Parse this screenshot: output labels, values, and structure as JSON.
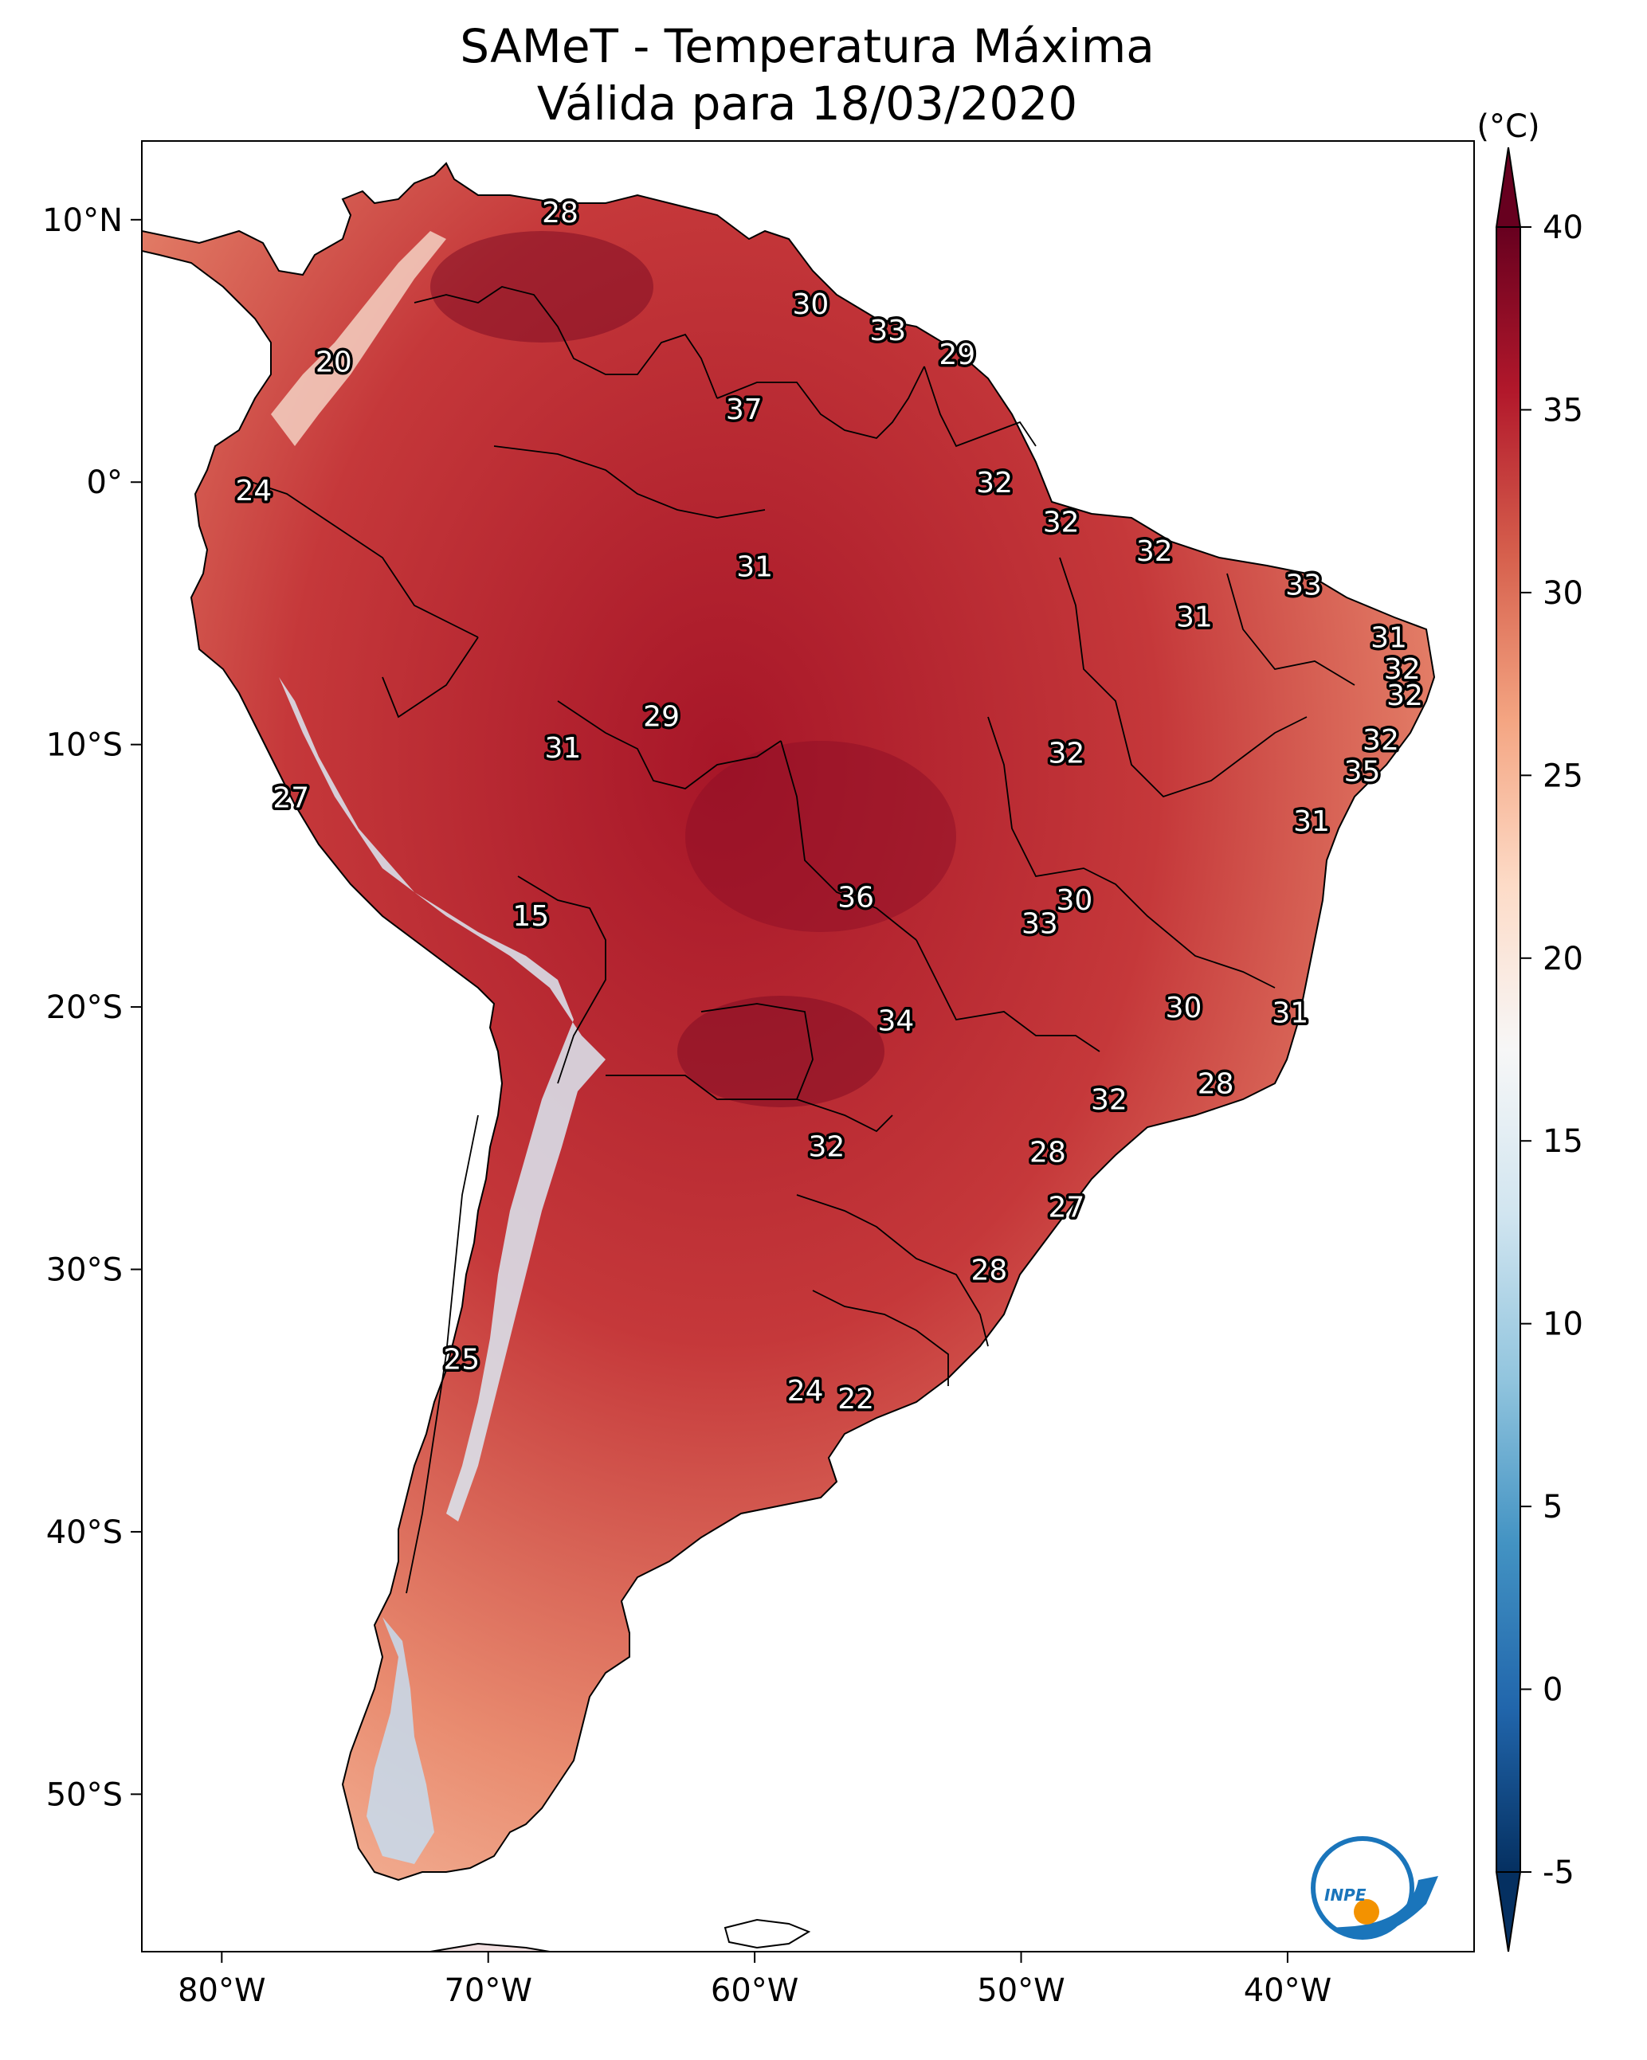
{
  "title": {
    "line1": "SAMeT - Temperatura Máxima",
    "line2": "Válida para 18/03/2020"
  },
  "map": {
    "lon_range": [
      -83,
      -33
    ],
    "lat_range": [
      -56,
      13
    ],
    "lon_ticks": [
      {
        "value": -80,
        "label": "80°W"
      },
      {
        "value": -70,
        "label": "70°W"
      },
      {
        "value": -60,
        "label": "60°W"
      },
      {
        "value": -50,
        "label": "50°W"
      },
      {
        "value": -40,
        "label": "40°W"
      }
    ],
    "lat_ticks": [
      {
        "value": 10,
        "label": "10°N"
      },
      {
        "value": 0,
        "label": "0°"
      },
      {
        "value": -10,
        "label": "10°S"
      },
      {
        "value": -20,
        "label": "20°S"
      },
      {
        "value": -30,
        "label": "30°S"
      },
      {
        "value": -40,
        "label": "40°S"
      },
      {
        "value": -50,
        "label": "50°S"
      }
    ]
  },
  "colorbar": {
    "unit_label": "(°C)",
    "vmin": -5,
    "vmax": 40,
    "ticks": [
      {
        "value": 40,
        "label": "40"
      },
      {
        "value": 35,
        "label": "35"
      },
      {
        "value": 30,
        "label": "30"
      },
      {
        "value": 25,
        "label": "25"
      },
      {
        "value": 20,
        "label": "20"
      },
      {
        "value": 15,
        "label": "15"
      },
      {
        "value": 10,
        "label": "10"
      },
      {
        "value": 5,
        "label": "5"
      },
      {
        "value": 0,
        "label": "0"
      },
      {
        "value": -5,
        "label": "-5"
      }
    ],
    "colors": [
      "#053061",
      "#2166ac",
      "#4393c3",
      "#92c5de",
      "#d1e5f0",
      "#f7f7f7",
      "#fddbc7",
      "#f4a582",
      "#d6604d",
      "#b2182b",
      "#67001f"
    ]
  },
  "station_labels": [
    {
      "text": "28",
      "lon": -67.3,
      "lat": 10.3
    },
    {
      "text": "30",
      "lon": -57.9,
      "lat": 6.8
    },
    {
      "text": "33",
      "lon": -55.0,
      "lat": 5.8
    },
    {
      "text": "29",
      "lon": -52.4,
      "lat": 4.9
    },
    {
      "text": "20",
      "lon": -75.8,
      "lat": 4.6
    },
    {
      "text": "37",
      "lon": -60.4,
      "lat": 2.8
    },
    {
      "text": "32",
      "lon": -51.0,
      "lat": 0.0
    },
    {
      "text": "24",
      "lon": -78.8,
      "lat": -0.3
    },
    {
      "text": "32",
      "lon": -48.5,
      "lat": -1.5
    },
    {
      "text": "32",
      "lon": -45.0,
      "lat": -2.6
    },
    {
      "text": "31",
      "lon": -60.0,
      "lat": -3.2
    },
    {
      "text": "33",
      "lon": -39.4,
      "lat": -3.9
    },
    {
      "text": "31",
      "lon": -43.5,
      "lat": -5.1
    },
    {
      "text": "31",
      "lon": -36.2,
      "lat": -5.9
    },
    {
      "text": "32",
      "lon": -35.7,
      "lat": -7.1
    },
    {
      "text": "32",
      "lon": -35.6,
      "lat": -8.1
    },
    {
      "text": "29",
      "lon": -63.5,
      "lat": -8.9
    },
    {
      "text": "32",
      "lon": -36.5,
      "lat": -9.8
    },
    {
      "text": "31",
      "lon": -67.2,
      "lat": -10.1
    },
    {
      "text": "32",
      "lon": -48.3,
      "lat": -10.3
    },
    {
      "text": "35",
      "lon": -37.2,
      "lat": -11.0
    },
    {
      "text": "27",
      "lon": -77.4,
      "lat": -12.0
    },
    {
      "text": "31",
      "lon": -39.1,
      "lat": -12.9
    },
    {
      "text": "36",
      "lon": -56.2,
      "lat": -15.8
    },
    {
      "text": "30",
      "lon": -48.0,
      "lat": -15.9
    },
    {
      "text": "15",
      "lon": -68.4,
      "lat": -16.5
    },
    {
      "text": "33",
      "lon": -49.3,
      "lat": -16.8
    },
    {
      "text": "30",
      "lon": -43.9,
      "lat": -20.0
    },
    {
      "text": "31",
      "lon": -39.9,
      "lat": -20.2
    },
    {
      "text": "34",
      "lon": -54.7,
      "lat": -20.5
    },
    {
      "text": "28",
      "lon": -42.7,
      "lat": -22.9
    },
    {
      "text": "32",
      "lon": -46.7,
      "lat": -23.5
    },
    {
      "text": "32",
      "lon": -57.3,
      "lat": -25.3
    },
    {
      "text": "28",
      "lon": -49.0,
      "lat": -25.5
    },
    {
      "text": "27",
      "lon": -48.3,
      "lat": -27.6
    },
    {
      "text": "28",
      "lon": -51.2,
      "lat": -30.0
    },
    {
      "text": "25",
      "lon": -71.0,
      "lat": -33.4
    },
    {
      "text": "24",
      "lon": -58.1,
      "lat": -34.6
    },
    {
      "text": "22",
      "lon": -56.2,
      "lat": -34.9
    }
  ],
  "logo": {
    "text": "INPE"
  }
}
